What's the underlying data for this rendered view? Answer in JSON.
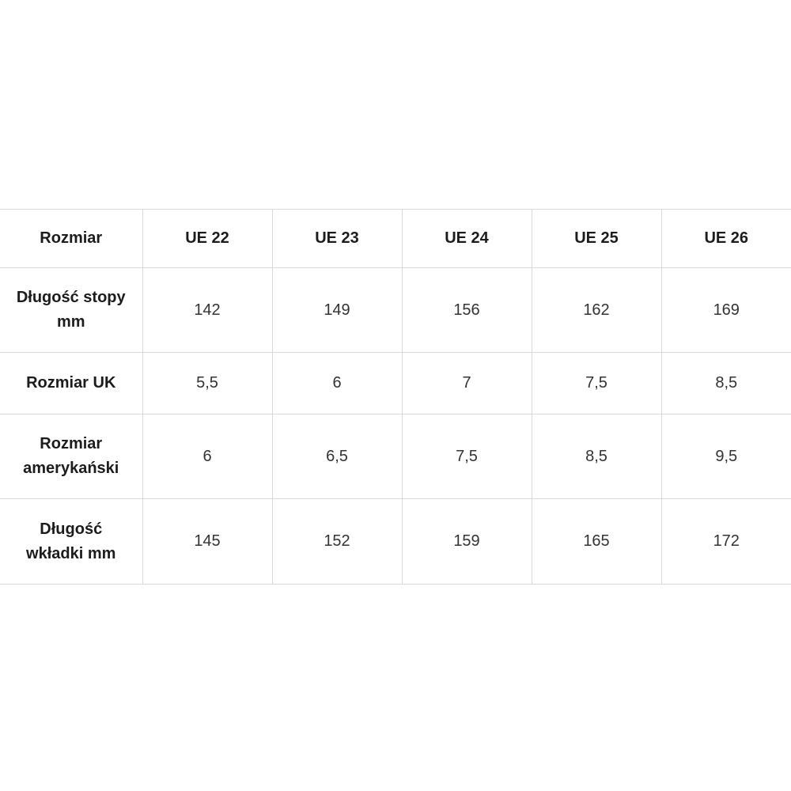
{
  "table": {
    "name": "size-chart",
    "columns": [
      "Rozmiar",
      "UE 22",
      "UE 23",
      "UE 24",
      "UE 25",
      "UE 26"
    ],
    "rows": [
      {
        "label": "Długość stopy mm",
        "values": [
          "142",
          "149",
          "156",
          "162",
          "169"
        ]
      },
      {
        "label": "Rozmiar UK",
        "values": [
          "5,5",
          "6",
          "7",
          "7,5",
          "8,5"
        ]
      },
      {
        "label": "Rozmiar amerykański",
        "values": [
          "6",
          "6,5",
          "7,5",
          "8,5",
          "9,5"
        ]
      },
      {
        "label": "Długość wkładki mm",
        "values": [
          "145",
          "152",
          "159",
          "165",
          "172"
        ]
      }
    ]
  },
  "colors": {
    "background": "#ffffff",
    "border": "#d9d9d9",
    "header_text": "#1c1c1c",
    "value_text": "#333333"
  }
}
